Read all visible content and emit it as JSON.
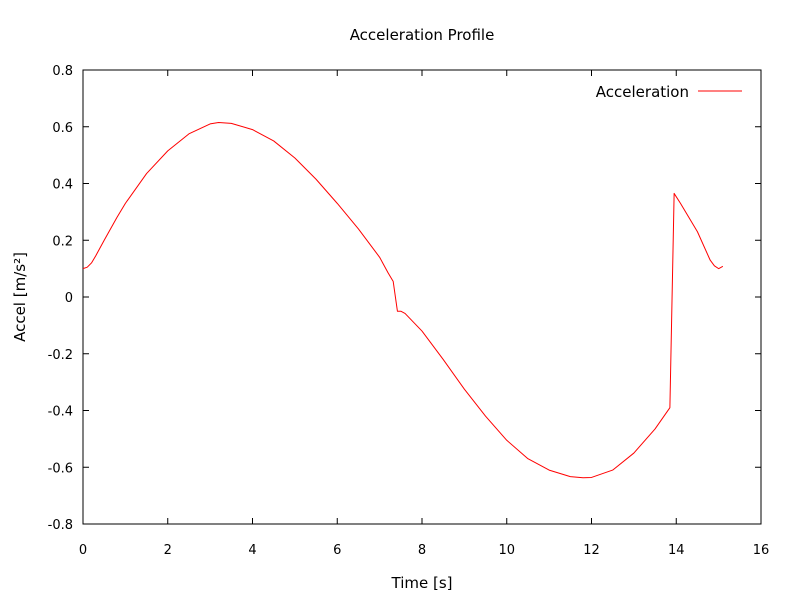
{
  "chart_data": {
    "type": "line",
    "title": "Acceleration Profile",
    "xlabel": "Time [s]",
    "ylabel": "Accel [m/s²]",
    "xlim": [
      0,
      16
    ],
    "ylim": [
      -0.8,
      0.8
    ],
    "xticks": [
      0,
      2,
      4,
      6,
      8,
      10,
      12,
      14,
      16
    ],
    "yticks": [
      -0.8,
      -0.6,
      -0.4,
      -0.2,
      0,
      0.2,
      0.4,
      0.6,
      0.8
    ],
    "xtick_labels": [
      "0",
      "2",
      "4",
      "6",
      "8",
      "10",
      "12",
      "14",
      "16"
    ],
    "ytick_labels": [
      "-0.8",
      "-0.6",
      "-0.4",
      "-0.2",
      "0",
      "0.2",
      "0.4",
      "0.6",
      "0.8"
    ],
    "grid": false,
    "legend_position": "top-right",
    "series": [
      {
        "name": "Acceleration",
        "color": "#ff0000",
        "points": [
          [
            0.0,
            0.1
          ],
          [
            0.1,
            0.105
          ],
          [
            0.2,
            0.12
          ],
          [
            0.3,
            0.145
          ],
          [
            0.5,
            0.2
          ],
          [
            0.8,
            0.28
          ],
          [
            1.0,
            0.33
          ],
          [
            1.5,
            0.435
          ],
          [
            2.0,
            0.515
          ],
          [
            2.5,
            0.575
          ],
          [
            3.0,
            0.61
          ],
          [
            3.2,
            0.615
          ],
          [
            3.5,
            0.612
          ],
          [
            4.0,
            0.59
          ],
          [
            4.5,
            0.55
          ],
          [
            5.0,
            0.49
          ],
          [
            5.5,
            0.415
          ],
          [
            6.0,
            0.33
          ],
          [
            6.5,
            0.24
          ],
          [
            7.0,
            0.14
          ],
          [
            7.2,
            0.085
          ],
          [
            7.3,
            0.06
          ],
          [
            7.32,
            0.055
          ],
          [
            7.42,
            -0.05
          ],
          [
            7.5,
            -0.05
          ],
          [
            7.6,
            -0.058
          ],
          [
            8.0,
            -0.12
          ],
          [
            8.5,
            -0.22
          ],
          [
            9.0,
            -0.325
          ],
          [
            9.5,
            -0.42
          ],
          [
            10.0,
            -0.505
          ],
          [
            10.5,
            -0.57
          ],
          [
            11.0,
            -0.61
          ],
          [
            11.5,
            -0.633
          ],
          [
            11.8,
            -0.637
          ],
          [
            12.0,
            -0.636
          ],
          [
            12.5,
            -0.61
          ],
          [
            13.0,
            -0.55
          ],
          [
            13.5,
            -0.465
          ],
          [
            13.85,
            -0.39
          ],
          [
            13.95,
            0.365
          ],
          [
            14.1,
            0.33
          ],
          [
            14.5,
            0.23
          ],
          [
            14.8,
            0.13
          ],
          [
            14.9,
            0.11
          ],
          [
            15.0,
            0.1
          ],
          [
            15.1,
            0.108
          ]
        ]
      }
    ]
  }
}
